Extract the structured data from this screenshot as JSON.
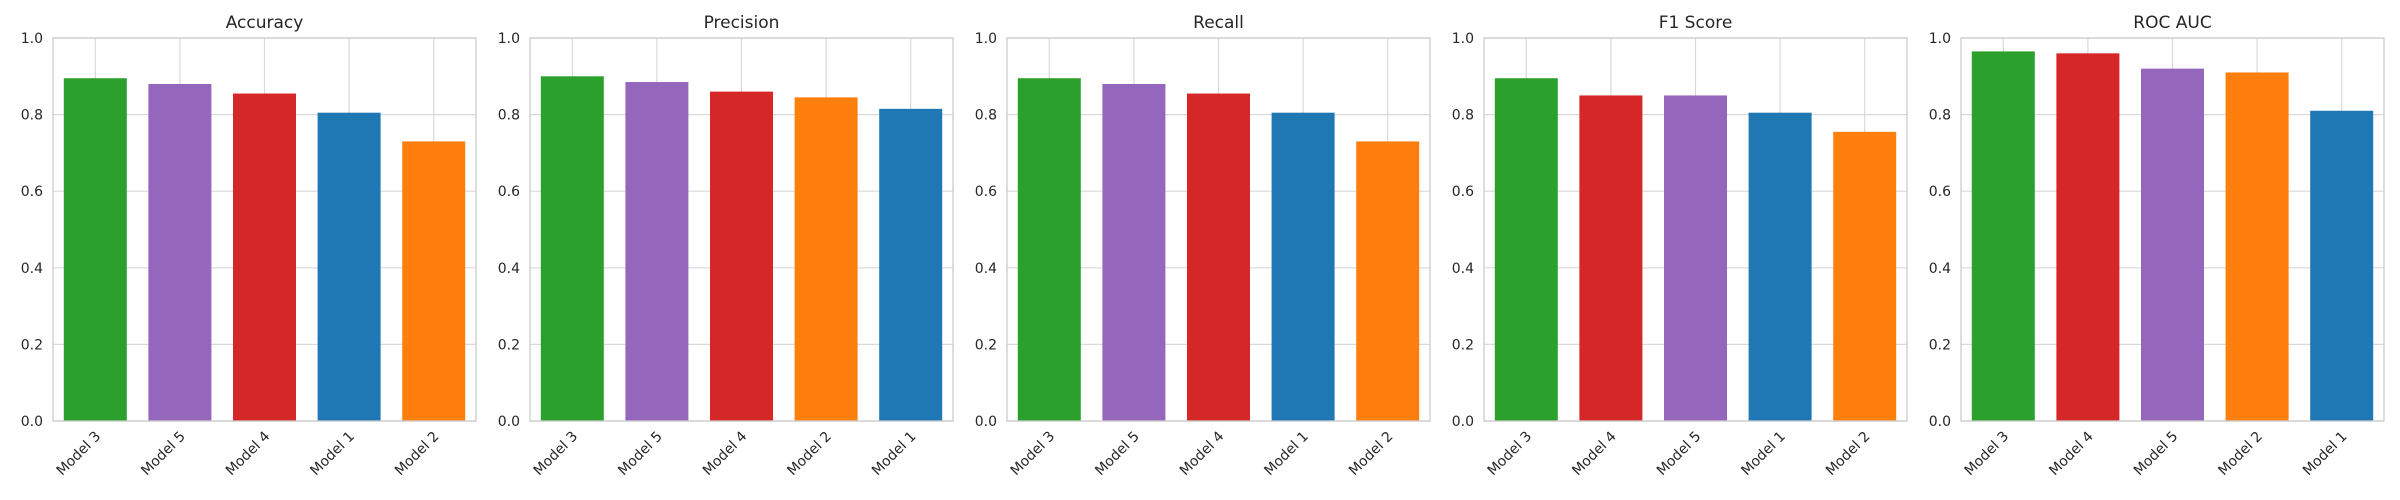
{
  "colors": {
    "Model 1": "#1f77b4",
    "Model 2": "#ff7f0e",
    "Model 3": "#2ca02c",
    "Model 4": "#d62728",
    "Model 5": "#9467bd",
    "grid": "#d9d9d9",
    "spine": "#cccccc"
  },
  "chart_data": [
    {
      "type": "bar",
      "title": "Accuracy",
      "categories": [
        "Model 3",
        "Model 5",
        "Model 4",
        "Model 1",
        "Model 2"
      ],
      "values": [
        0.895,
        0.88,
        0.855,
        0.805,
        0.73
      ],
      "ylim": [
        0,
        1.0
      ],
      "yticks": [
        "0.0",
        "0.2",
        "0.4",
        "0.6",
        "0.8",
        "1.0"
      ],
      "grid": true
    },
    {
      "type": "bar",
      "title": "Precision",
      "categories": [
        "Model 3",
        "Model 5",
        "Model 4",
        "Model 2",
        "Model 1"
      ],
      "values": [
        0.9,
        0.885,
        0.86,
        0.845,
        0.815
      ],
      "ylim": [
        0,
        1.0
      ],
      "yticks": [
        "0.0",
        "0.2",
        "0.4",
        "0.6",
        "0.8",
        "1.0"
      ],
      "grid": true
    },
    {
      "type": "bar",
      "title": "Recall",
      "categories": [
        "Model 3",
        "Model 5",
        "Model 4",
        "Model 1",
        "Model 2"
      ],
      "values": [
        0.895,
        0.88,
        0.855,
        0.805,
        0.73
      ],
      "ylim": [
        0,
        1.0
      ],
      "yticks": [
        "0.0",
        "0.2",
        "0.4",
        "0.6",
        "0.8",
        "1.0"
      ],
      "grid": true
    },
    {
      "type": "bar",
      "title": "F1 Score",
      "categories": [
        "Model 3",
        "Model 4",
        "Model 5",
        "Model 1",
        "Model 2"
      ],
      "values": [
        0.895,
        0.85,
        0.85,
        0.805,
        0.755
      ],
      "ylim": [
        0,
        1.0
      ],
      "yticks": [
        "0.0",
        "0.2",
        "0.4",
        "0.6",
        "0.8",
        "1.0"
      ],
      "grid": true
    },
    {
      "type": "bar",
      "title": "ROC AUC",
      "categories": [
        "Model 3",
        "Model 4",
        "Model 5",
        "Model 2",
        "Model 1"
      ],
      "values": [
        0.965,
        0.96,
        0.92,
        0.91,
        0.81
      ],
      "ylim": [
        0,
        1.0
      ],
      "yticks": [
        "0.0",
        "0.2",
        "0.4",
        "0.6",
        "0.8",
        "1.0"
      ],
      "grid": true
    }
  ]
}
